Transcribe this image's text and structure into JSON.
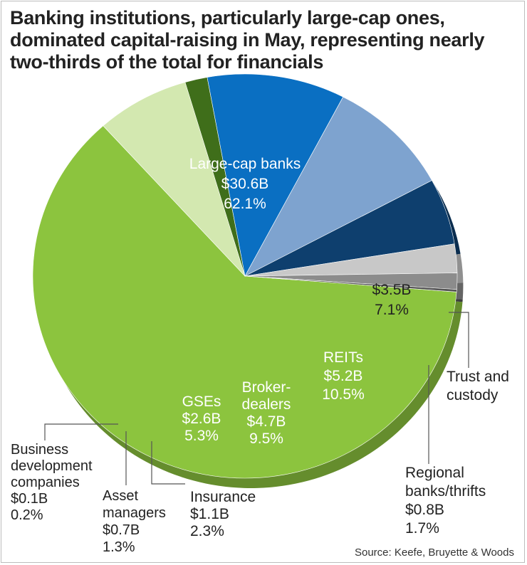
{
  "chart_data": {
    "type": "pie",
    "title_lines": [
      "Banking institutions, particularly large-cap ones,",
      "dominated capital-raising in May, representing nearly",
      "two-thirds of the total for financials"
    ],
    "source": "Source: Keefe, Bruyette & Woods",
    "slices": [
      {
        "id": "large-cap-banks",
        "label_lines": [
          "Large-cap banks"
        ],
        "amount": "$30.6B",
        "percent_label": "62.1%",
        "value": 62.1,
        "color": "#8cc43e",
        "text_color": "#ffffff"
      },
      {
        "id": "trust-custody",
        "label_lines": [
          "Trust and",
          "custody"
        ],
        "amount": "$3.5B",
        "percent_label": "7.1%",
        "value": 7.1,
        "color": "#d3e8b0",
        "text_color": "#222222"
      },
      {
        "id": "regional-banks",
        "label_lines": [
          "Regional",
          "banks/thrifts"
        ],
        "amount": "$0.8B",
        "percent_label": "1.7%",
        "value": 1.7,
        "color": "#3f6e1a",
        "text_color": "#222222"
      },
      {
        "id": "reits",
        "label_lines": [
          "REITs"
        ],
        "amount": "$5.2B",
        "percent_label": "10.5%",
        "value": 10.5,
        "color": "#0a6fc2",
        "text_color": "#ffffff"
      },
      {
        "id": "broker-dealers",
        "label_lines": [
          "Broker-",
          "dealers"
        ],
        "amount": "$4.7B",
        "percent_label": "9.5%",
        "value": 9.5,
        "color": "#7ea3cf",
        "text_color": "#ffffff"
      },
      {
        "id": "gses",
        "label_lines": [
          "GSEs"
        ],
        "amount": "$2.6B",
        "percent_label": "5.3%",
        "value": 5.3,
        "color": "#0e3f6e",
        "text_color": "#ffffff"
      },
      {
        "id": "insurance",
        "label_lines": [
          "Insurance"
        ],
        "amount": "$1.1B",
        "percent_label": "2.3%",
        "value": 2.3,
        "color": "#c8c8c8",
        "text_color": "#222222"
      },
      {
        "id": "asset-managers",
        "label_lines": [
          "Asset",
          "managers"
        ],
        "amount": "$0.7B",
        "percent_label": "1.3%",
        "value": 1.3,
        "color": "#8c8c8c",
        "text_color": "#222222"
      },
      {
        "id": "business-development",
        "label_lines": [
          "Business",
          "development",
          "companies"
        ],
        "amount": "$0.1B",
        "percent_label": "0.2%",
        "value": 0.2,
        "color": "#555555",
        "text_color": "#222222"
      }
    ]
  }
}
